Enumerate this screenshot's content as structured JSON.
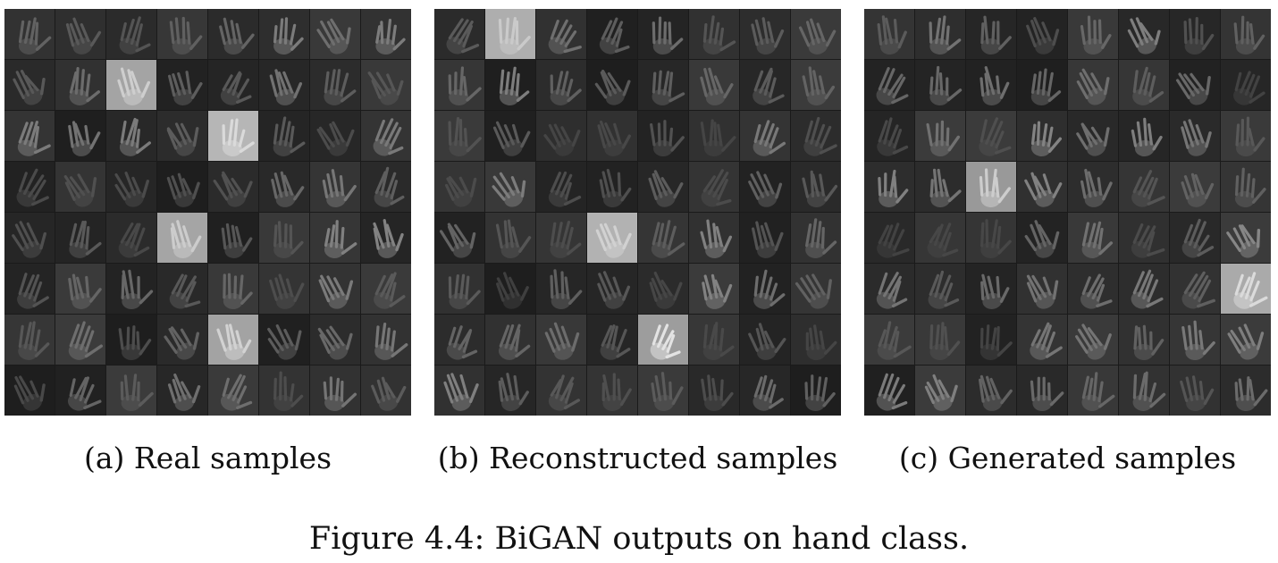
{
  "figure": {
    "caption": "Figure 4.4: BiGAN outputs on hand class."
  },
  "panels": [
    {
      "id": "a",
      "caption": "(a) Real samples",
      "content": "hand-xray-grid",
      "rows": 8,
      "cols": 8,
      "bright_tiles": [
        [
          1,
          2
        ],
        [
          2,
          4
        ],
        [
          4,
          3
        ],
        [
          6,
          4
        ]
      ]
    },
    {
      "id": "b",
      "caption": "(b) Reconstructed samples",
      "content": "hand-xray-grid",
      "rows": 8,
      "cols": 8,
      "bright_tiles": [
        [
          4,
          3
        ],
        [
          6,
          4
        ],
        [
          0,
          1
        ]
      ]
    },
    {
      "id": "c",
      "caption": "(c) Generated samples",
      "content": "hand-xray-grid",
      "rows": 8,
      "cols": 8,
      "bright_tiles": [
        [
          5,
          7
        ],
        [
          3,
          2
        ]
      ]
    }
  ]
}
